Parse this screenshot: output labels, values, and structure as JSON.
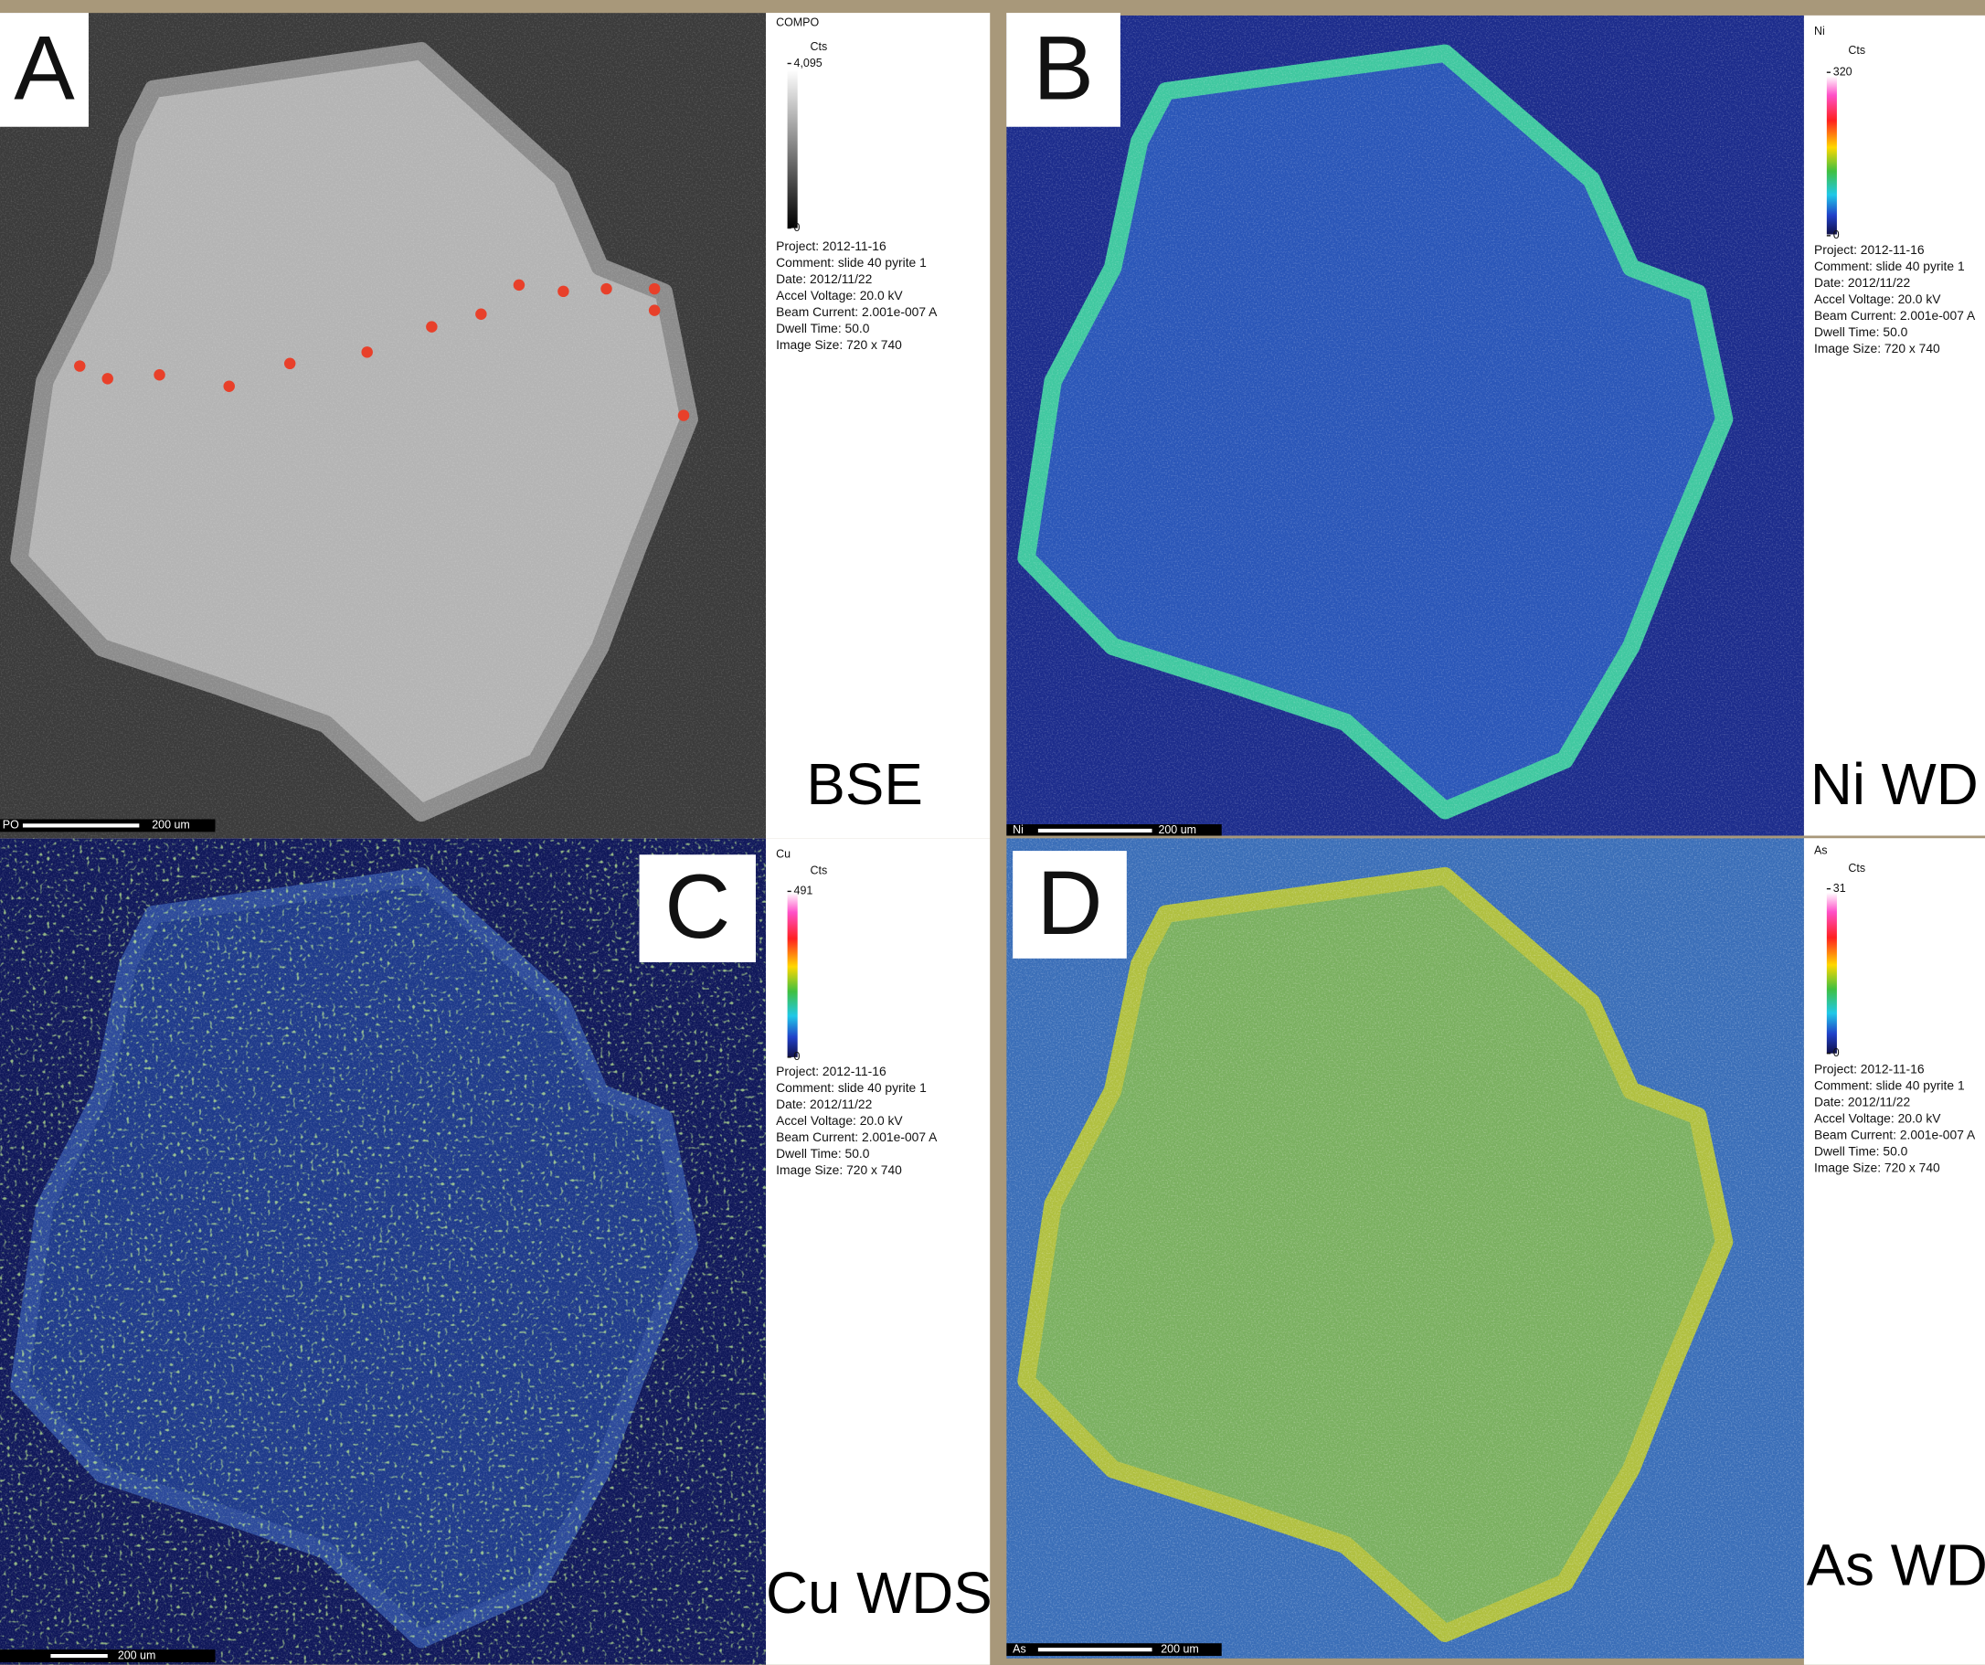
{
  "panels": [
    {
      "letter": "A",
      "colorbar_title": "COMPO",
      "units": "Cts",
      "max": "4,095",
      "min": "0",
      "metadata": [
        "Project: 2012-11-16",
        "Comment: slide 40 pyrite 1",
        "Date: 2012/11/22",
        "Accel Voltage: 20.0 kV",
        "Beam Current: 2.001e-007 A",
        "Dwell Time: 50.0",
        "Image Size: 720 x 740"
      ],
      "label": "BSE",
      "scalebar": {
        "phase": "PO",
        "length": "200 um"
      }
    },
    {
      "letter": "B",
      "colorbar_title": "Ni",
      "units": "Cts",
      "max": "320",
      "min": "0",
      "metadata": [
        "Project: 2012-11-16",
        "Comment: slide 40 pyrite 1",
        "Date: 2012/11/22",
        "Accel Voltage: 20.0 kV",
        "Beam Current: 2.001e-007 A",
        "Dwell Time: 50.0",
        "Image Size: 720 x 740"
      ],
      "label": "Ni WD",
      "scalebar": {
        "phase": "Ni",
        "length": "200 um"
      }
    },
    {
      "letter": "C",
      "colorbar_title": "Cu",
      "units": "Cts",
      "max": "491",
      "min": "0",
      "metadata": [
        "Project: 2012-11-16",
        "Comment: slide 40 pyrite 1",
        "Date: 2012/11/22",
        "Accel Voltage: 20.0 kV",
        "Beam Current: 2.001e-007 A",
        "Dwell Time: 50.0",
        "Image Size: 720 x 740"
      ],
      "label": "Cu WDS",
      "scalebar": {
        "length": "200 um"
      }
    },
    {
      "letter": "D",
      "colorbar_title": "As",
      "units": "Cts",
      "max": "31",
      "min": "0",
      "metadata": [
        "Project: 2012-11-16",
        "Comment: slide 40 pyrite 1",
        "Date: 2012/11/22",
        "Accel Voltage: 20.0 kV",
        "Beam Current: 2.001e-007 A",
        "Dwell Time: 50.0",
        "Image Size: 720 x 740"
      ],
      "label": "As WD",
      "scalebar": {
        "phase": "As",
        "length": "200 um"
      }
    }
  ]
}
